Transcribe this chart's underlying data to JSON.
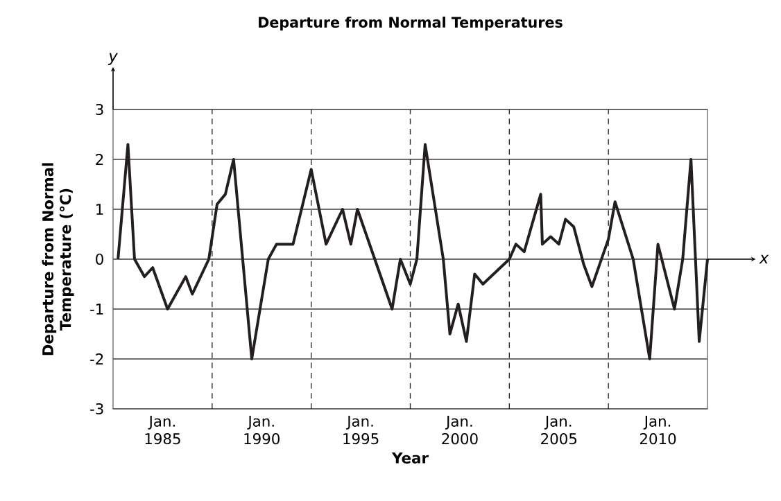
{
  "chart_data": {
    "type": "line",
    "title": "Departure from Normal Temperatures",
    "xlabel": "Year",
    "ylabel": "Departure from Normal Temperature (°C)",
    "annotations": [
      "y",
      "x"
    ],
    "x": [
      "1982-10",
      "1983-04",
      "1983-08",
      "1984-02",
      "1984-07",
      "1985-04",
      "1986-03",
      "1986-07",
      "1987-05",
      "1987-10",
      "1988-03",
      "1988-08",
      "1989-07",
      "1990-05",
      "1990-10",
      "1991-08",
      "1992-07",
      "1993-04",
      "1994-02",
      "1994-07",
      "1994-11",
      "1996-08",
      "1997-01",
      "1997-07",
      "1997-11",
      "1998-04",
      "1999-03",
      "1999-07",
      "1999-12",
      "2000-05",
      "2000-10",
      "2001-03",
      "2002-07",
      "2002-11",
      "2003-04",
      "2004-02",
      "2004-03",
      "2004-08",
      "2005-01",
      "2005-05",
      "2005-10",
      "2006-04",
      "2006-09",
      "2007-07",
      "2007-11",
      "2008-10",
      "2009-08",
      "2010-01",
      "2010-11",
      "2011-04",
      "2011-09",
      "2012-02",
      "2012-07"
    ],
    "values": [
      0,
      2.3,
      0,
      -0.35,
      -0.17,
      -1.0,
      -0.35,
      -0.7,
      0,
      1.1,
      1.3,
      2.0,
      -2.0,
      0,
      0.3,
      0.3,
      1.8,
      0.3,
      1.0,
      0.3,
      1.0,
      -1.0,
      0,
      -0.5,
      0,
      2.3,
      0,
      -1.5,
      -0.9,
      -1.65,
      -0.3,
      -0.5,
      0,
      0.3,
      0.15,
      1.3,
      0.3,
      0.45,
      0.3,
      0.8,
      0.65,
      -0.1,
      -0.55,
      0.4,
      1.15,
      0,
      -2.0,
      0.3,
      -1.0,
      0,
      2.0,
      -1.65,
      0
    ],
    "color": "#231f20",
    "line_style": "solid",
    "xlim": [
      "1982-07",
      "2012-07"
    ],
    "ylim": [
      -3,
      3
    ],
    "xticks": [
      {
        "value": "1985-01",
        "label": "Jan. 1985"
      },
      {
        "value": "1990-01",
        "label": "Jan. 1990"
      },
      {
        "value": "1995-01",
        "label": "Jan. 1995"
      },
      {
        "value": "2000-01",
        "label": "Jan. 2000"
      },
      {
        "value": "2005-01",
        "label": "Jan. 2005"
      },
      {
        "value": "2010-01",
        "label": "Jan. 2010"
      }
    ],
    "yticks": [
      -3,
      -2,
      -1,
      0,
      1,
      2,
      3
    ],
    "grid": "y",
    "ref_lines": [
      {
        "axis": "x",
        "value": "1987-07",
        "line_style": "dashed"
      },
      {
        "axis": "x",
        "value": "1992-07",
        "line_style": "dashed"
      },
      {
        "axis": "x",
        "value": "1997-07",
        "line_style": "dashed"
      },
      {
        "axis": "x",
        "value": "2002-07",
        "line_style": "dashed"
      },
      {
        "axis": "x",
        "value": "2007-07",
        "line_style": "dashed"
      }
    ]
  }
}
